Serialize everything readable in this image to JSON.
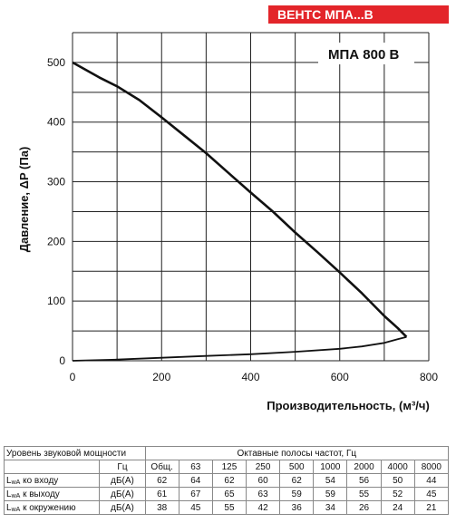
{
  "badge": "ВЕНТС МПА...В",
  "chart_data": {
    "type": "line",
    "model_label": "МПА 800 В",
    "ylabel": "Давление, ΔP (Па)",
    "xlabel": "Производительность, (м³/ч)",
    "xlim": [
      0,
      800
    ],
    "ylim": [
      0,
      550
    ],
    "x_ticks": [
      0,
      200,
      400,
      600,
      800
    ],
    "y_ticks": [
      0,
      100,
      200,
      300,
      400,
      500
    ],
    "grid_x": [
      0,
      100,
      200,
      300,
      400,
      500,
      600,
      700,
      800
    ],
    "grid_y": [
      0,
      50,
      100,
      150,
      200,
      250,
      300,
      350,
      400,
      450,
      500,
      550
    ],
    "series": [
      {
        "name": "",
        "x": [
          0,
          60,
          100,
          150,
          200,
          250,
          300,
          350,
          400,
          450,
          500,
          550,
          600,
          650,
          700,
          730,
          750
        ],
        "y": [
          500,
          475,
          460,
          437,
          408,
          378,
          348,
          315,
          282,
          250,
          215,
          182,
          148,
          113,
          75,
          55,
          40
        ]
      },
      {
        "name": "",
        "x": [
          0,
          100,
          200,
          300,
          400,
          500,
          600,
          650,
          700,
          730,
          750
        ],
        "y": [
          0,
          2,
          5,
          8,
          11,
          15,
          20,
          24,
          30,
          36,
          40
        ]
      }
    ]
  },
  "sound_table": {
    "header_left": "Уровень звуковой мощности",
    "header_right": "Октавные полосы частот, Гц",
    "unit_hz": "Гц",
    "total_label": "Общ.",
    "bands": [
      "63",
      "125",
      "250",
      "500",
      "1000",
      "2000",
      "4000",
      "8000"
    ],
    "rows": [
      {
        "sub": "wA",
        "label": " ко входу",
        "unit": "дБ(А)",
        "values": [
          "62",
          "64",
          "62",
          "60",
          "62",
          "54",
          "56",
          "50",
          "44"
        ]
      },
      {
        "sub": "wA",
        "label": " к выходу",
        "unit": "дБ(А)",
        "values": [
          "61",
          "67",
          "65",
          "63",
          "59",
          "59",
          "55",
          "52",
          "45"
        ]
      },
      {
        "sub": "wA",
        "label": " к окружению",
        "unit": "дБ(А)",
        "values": [
          "38",
          "45",
          "55",
          "42",
          "36",
          "34",
          "26",
          "24",
          "21"
        ]
      }
    ],
    "row_prefix": "L"
  }
}
